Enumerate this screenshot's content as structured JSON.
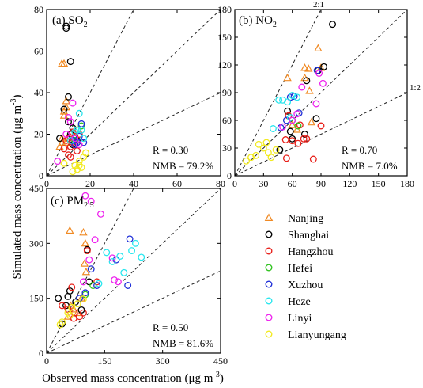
{
  "figure": {
    "y_label": "Simulated mass concentration (μg m",
    "y_label_sup": "-3",
    "y_label_end": ")",
    "x_label": "Observed mass concentration (μg m",
    "x_label_sup": "-3",
    "x_label_end": ")"
  },
  "legend": {
    "placement": "bottom-right",
    "items": [
      {
        "name": "Nanjing",
        "marker": "triangle",
        "color": "#f08a24"
      },
      {
        "name": "Shanghai",
        "marker": "circle",
        "color": "#000000"
      },
      {
        "name": "Hangzhou",
        "marker": "circle",
        "color": "#e8201a"
      },
      {
        "name": "Hefei",
        "marker": "circle",
        "color": "#2fc21f"
      },
      {
        "name": "Xuzhou",
        "marker": "circle",
        "color": "#1f2fd8"
      },
      {
        "name": "Heze",
        "marker": "circle",
        "color": "#28e6ee"
      },
      {
        "name": "Linyi",
        "marker": "circle",
        "color": "#ee22ee"
      },
      {
        "name": "Lianyungang",
        "marker": "circle",
        "color": "#f2ea20"
      }
    ]
  },
  "chart_data": [
    {
      "type": "scatter",
      "panel_label": "(a) SO",
      "panel_label_sub": "2",
      "xlim": [
        0,
        80
      ],
      "ylim": [
        0,
        80
      ],
      "xticks": [
        0,
        20,
        40,
        60,
        80
      ],
      "yticks": [
        0,
        20,
        40,
        60,
        80
      ],
      "reference_lines": [
        "2:1",
        "1:1",
        "1:2"
      ],
      "line_labels": [],
      "stats": {
        "R": "R = 0.30",
        "NMB": "NMB = 79.2%"
      },
      "series": [
        {
          "name": "Nanjing",
          "points": [
            [
              7,
              54
            ],
            [
              8,
              54
            ],
            [
              8,
              31
            ],
            [
              8,
              29
            ],
            [
              9,
              36
            ],
            [
              9,
              33
            ],
            [
              7,
              18
            ],
            [
              7,
              16
            ],
            [
              6,
              14
            ],
            [
              9,
              16
            ]
          ]
        },
        {
          "name": "Shanghai",
          "points": [
            [
              9,
              72
            ],
            [
              9,
              71
            ],
            [
              11,
              55
            ],
            [
              10,
              38
            ],
            [
              6,
              18
            ],
            [
              8,
              32
            ],
            [
              10,
              26
            ],
            [
              12,
              23
            ],
            [
              11,
              20
            ],
            [
              13,
              18
            ],
            [
              14,
              17
            ],
            [
              12,
              15
            ]
          ]
        },
        {
          "name": "Hangzhou",
          "points": [
            [
              8,
              13
            ],
            [
              9,
              17
            ],
            [
              10,
              18
            ],
            [
              11,
              14
            ],
            [
              12,
              16
            ],
            [
              13,
              19
            ],
            [
              14,
              12
            ],
            [
              10,
              10
            ],
            [
              11,
              9
            ],
            [
              15,
              20
            ],
            [
              12,
              21
            ]
          ]
        },
        {
          "name": "Hefei",
          "points": [
            [
              14,
              22
            ],
            [
              13,
              17
            ],
            [
              16,
              24
            ]
          ]
        },
        {
          "name": "Xuzhou",
          "points": [
            [
              14,
              16
            ],
            [
              12,
              17
            ],
            [
              17,
              16
            ],
            [
              16,
              25
            ],
            [
              13,
              15
            ],
            [
              15,
              19
            ]
          ]
        },
        {
          "name": "Heze",
          "points": [
            [
              13,
              21
            ],
            [
              14,
              22
            ],
            [
              16,
              22
            ],
            [
              15,
              30
            ],
            [
              17,
              18
            ],
            [
              11,
              17
            ]
          ]
        },
        {
          "name": "Linyi",
          "points": [
            [
              12,
              35
            ],
            [
              10,
              28
            ],
            [
              11,
              26
            ],
            [
              9,
              20
            ],
            [
              5,
              7
            ],
            [
              13,
              18
            ],
            [
              15,
              15
            ]
          ]
        },
        {
          "name": "Lianyungang",
          "points": [
            [
              8,
              6
            ],
            [
              14,
              3
            ],
            [
              12,
              2
            ],
            [
              15,
              5
            ],
            [
              16,
              4
            ],
            [
              17,
              9
            ],
            [
              18,
              11
            ],
            [
              15,
              7
            ],
            [
              13,
              5
            ]
          ]
        }
      ]
    },
    {
      "type": "scatter",
      "panel_label": "(b) NO",
      "panel_label_sub": "2",
      "xlim": [
        0,
        180
      ],
      "ylim": [
        0,
        180
      ],
      "xticks": [
        0,
        30,
        60,
        90,
        120,
        150,
        180
      ],
      "yticks": [
        0,
        30,
        60,
        90,
        120,
        150,
        180
      ],
      "reference_lines": [
        "2:1",
        "1:1",
        "1:2"
      ],
      "line_labels": [
        "2:1",
        "1:2"
      ],
      "stats": {
        "R": "R = 0.70",
        "NMB = 7.0%": "",
        "NMB": "NMB = 7.0%"
      },
      "series": [
        {
          "name": "Nanjing",
          "points": [
            [
              73,
              117
            ],
            [
              77,
              116
            ],
            [
              87,
              138
            ],
            [
              73,
              106
            ],
            [
              55,
              106
            ],
            [
              78,
              92
            ],
            [
              80,
              58
            ],
            [
              90,
              117
            ],
            [
              60,
              55
            ],
            [
              65,
              50
            ]
          ]
        },
        {
          "name": "Shanghai",
          "points": [
            [
              102,
              164
            ],
            [
              93,
              118
            ],
            [
              75,
              103
            ],
            [
              87,
              114
            ],
            [
              55,
              70
            ],
            [
              47,
              28
            ],
            [
              60,
              40
            ],
            [
              73,
              45
            ],
            [
              85,
              62
            ],
            [
              58,
              48
            ]
          ]
        },
        {
          "name": "Hangzhou",
          "points": [
            [
              53,
              39
            ],
            [
              60,
              38
            ],
            [
              66,
              35
            ],
            [
              72,
              40
            ],
            [
              75,
              40
            ],
            [
              82,
              18
            ],
            [
              90,
              54
            ],
            [
              56,
              65
            ],
            [
              68,
              55
            ],
            [
              54,
              19
            ]
          ]
        },
        {
          "name": "Hefei",
          "points": [
            [
              60,
              60
            ],
            [
              66,
              54
            ]
          ]
        },
        {
          "name": "Xuzhou",
          "points": [
            [
              48,
              52
            ],
            [
              54,
              60
            ],
            [
              62,
              86
            ],
            [
              67,
              68
            ],
            [
              58,
              85
            ],
            [
              86,
              114
            ]
          ]
        },
        {
          "name": "Heze",
          "points": [
            [
              46,
              82
            ],
            [
              50,
              82
            ],
            [
              55,
              80
            ],
            [
              40,
              51
            ],
            [
              60,
              87
            ],
            [
              65,
              85
            ],
            [
              58,
              63
            ]
          ]
        },
        {
          "name": "Linyi",
          "points": [
            [
              70,
              96
            ],
            [
              85,
              78
            ],
            [
              92,
              100
            ],
            [
              88,
              111
            ],
            [
              50,
              53
            ],
            [
              60,
              60
            ],
            [
              65,
              67
            ]
          ]
        },
        {
          "name": "Lianyungang",
          "points": [
            [
              12,
              16
            ],
            [
              17,
              20
            ],
            [
              22,
              22
            ],
            [
              25,
              34
            ],
            [
              30,
              30
            ],
            [
              35,
              25
            ],
            [
              38,
              20
            ],
            [
              33,
              36
            ],
            [
              43,
              28
            ]
          ]
        }
      ]
    },
    {
      "type": "scatter",
      "panel_label": "(c) PM",
      "panel_label_sub": "2.5",
      "xlim": [
        0,
        450
      ],
      "ylim": [
        0,
        450
      ],
      "xticks": [
        0,
        150,
        300,
        450
      ],
      "yticks": [
        0,
        150,
        300,
        450
      ],
      "reference_lines": [
        "2:1",
        "1:1",
        "1:2"
      ],
      "line_labels": [],
      "stats": {
        "R": "R = 0.50",
        "NMB": "NMB = 81.6%"
      },
      "series": [
        {
          "name": "Nanjing",
          "points": [
            [
              60,
              335
            ],
            [
              95,
              330
            ],
            [
              100,
              300
            ],
            [
              62,
              130
            ],
            [
              98,
              245
            ],
            [
              70,
              120
            ],
            [
              80,
              110
            ],
            [
              55,
              100
            ],
            [
              90,
              150
            ],
            [
              102,
              222
            ]
          ]
        },
        {
          "name": "Shanghai",
          "points": [
            [
              105,
              283
            ],
            [
              110,
              195
            ],
            [
              75,
              140
            ],
            [
              55,
              155
            ],
            [
              40,
              80
            ],
            [
              30,
              150
            ],
            [
              60,
              170
            ],
            [
              90,
              118
            ],
            [
              50,
              130
            ]
          ]
        },
        {
          "name": "Hangzhou",
          "points": [
            [
              40,
              130
            ],
            [
              55,
              120
            ],
            [
              72,
              110
            ],
            [
              85,
              100
            ],
            [
              95,
              110
            ],
            [
              70,
              95
            ],
            [
              105,
              280
            ],
            [
              130,
              195
            ],
            [
              65,
              180
            ]
          ]
        },
        {
          "name": "Hefei",
          "points": [
            [
              100,
              160
            ],
            [
              120,
              185
            ]
          ]
        },
        {
          "name": "Xuzhou",
          "points": [
            [
              215,
              312
            ],
            [
              100,
              165
            ],
            [
              130,
              185
            ],
            [
              180,
              255
            ],
            [
              210,
              185
            ],
            [
              85,
              150
            ],
            [
              115,
              230
            ]
          ]
        },
        {
          "name": "Heze",
          "points": [
            [
              155,
              275
            ],
            [
              190,
              265
            ],
            [
              230,
              300
            ],
            [
              245,
              262
            ],
            [
              200,
              220
            ],
            [
              135,
              190
            ],
            [
              170,
              250
            ],
            [
              220,
              280
            ]
          ]
        },
        {
          "name": "Linyi",
          "points": [
            [
              100,
              430
            ],
            [
              115,
              415
            ],
            [
              140,
              380
            ],
            [
              125,
              310
            ],
            [
              175,
              200
            ],
            [
              185,
              195
            ],
            [
              170,
              260
            ],
            [
              110,
              255
            ],
            [
              95,
              195
            ]
          ]
        },
        {
          "name": "Lianyungang",
          "points": [
            [
              40,
              85
            ],
            [
              55,
              110
            ],
            [
              65,
              125
            ],
            [
              80,
              135
            ],
            [
              95,
              148
            ],
            [
              35,
              78
            ],
            [
              60,
              104
            ]
          ]
        }
      ]
    }
  ]
}
